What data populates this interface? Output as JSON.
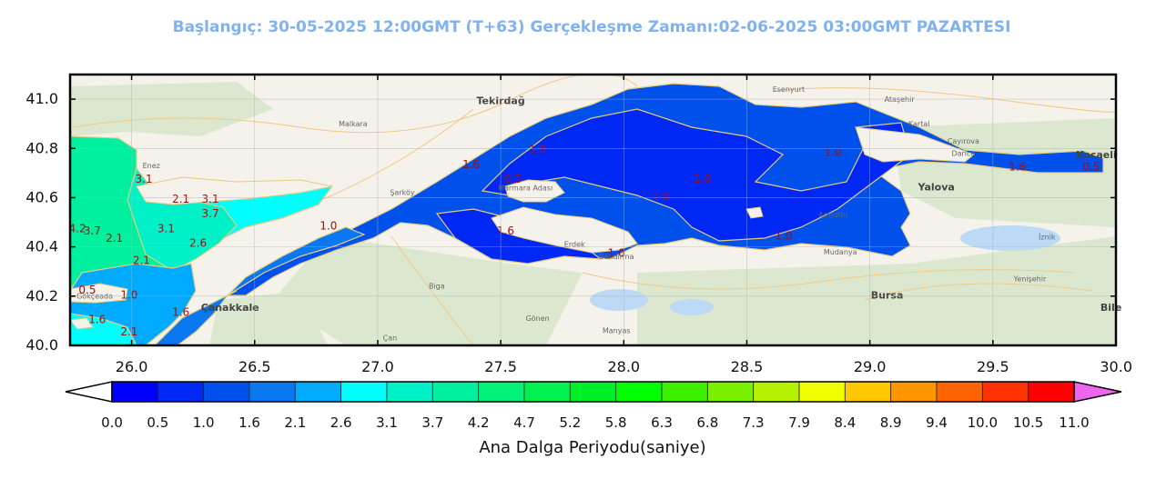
{
  "chart_data": {
    "type": "heatmap",
    "title": "Başlangıç: 30-05-2025 12:00GMT (T+63)  Gerçekleşme Zamanı:02-06-2025 03:00GMT PAZARTESI",
    "xlabel": "",
    "ylabel": "",
    "xlim": [
      25.75,
      30.0
    ],
    "ylim": [
      40.0,
      41.1
    ],
    "x_ticks": [
      "26.0",
      "26.5",
      "27.0",
      "27.5",
      "28.0",
      "28.5",
      "29.0",
      "29.5",
      "30.0"
    ],
    "y_ticks": [
      "40.0",
      "40.2",
      "40.4",
      "40.6",
      "40.8",
      "41.0"
    ],
    "grid": true,
    "colorbar": {
      "label": "Ana Dalga Periyodu(saniye)",
      "ticks": [
        "0.0",
        "0.5",
        "1.0",
        "1.6",
        "2.1",
        "2.6",
        "3.1",
        "3.7",
        "4.2",
        "4.7",
        "5.2",
        "5.8",
        "6.3",
        "6.8",
        "7.3",
        "7.9",
        "8.4",
        "8.9",
        "9.4",
        "10.0",
        "10.5",
        "11.0"
      ],
      "colors": [
        "#0000ff",
        "#0028f5",
        "#0050eb",
        "#0a78f0",
        "#00aaff",
        "#00ffff",
        "#00f0c8",
        "#00f0a0",
        "#00f078",
        "#00f050",
        "#00f028",
        "#00ff00",
        "#3cf000",
        "#78f000",
        "#b4f000",
        "#f0ff00",
        "#ffc800",
        "#ff9600",
        "#ff6400",
        "#ff3200",
        "#ff0000"
      ],
      "under_color": "#ffffff",
      "over_color": "#ee66ee"
    },
    "contour_labels": [
      {
        "text": "1.0",
        "lon": 27.65,
        "lat": 40.78
      },
      {
        "text": "0.5",
        "lon": 27.55,
        "lat": 40.66
      },
      {
        "text": "1.6",
        "lon": 27.38,
        "lat": 40.72
      },
      {
        "text": "1.6",
        "lon": 27.52,
        "lat": 40.45
      },
      {
        "text": "1.0",
        "lon": 28.15,
        "lat": 40.59
      },
      {
        "text": "1.0",
        "lon": 28.32,
        "lat": 40.66
      },
      {
        "text": "1.0",
        "lon": 28.85,
        "lat": 40.77
      },
      {
        "text": "1.0",
        "lon": 28.65,
        "lat": 40.43
      },
      {
        "text": "1.0",
        "lon": 27.97,
        "lat": 40.36
      },
      {
        "text": "1.0",
        "lon": 26.8,
        "lat": 40.47
      },
      {
        "text": "1.6",
        "lon": 29.6,
        "lat": 40.71
      },
      {
        "text": "0.5",
        "lon": 29.9,
        "lat": 40.71
      },
      {
        "text": "3.1",
        "lon": 26.05,
        "lat": 40.66
      },
      {
        "text": "2.1",
        "lon": 26.2,
        "lat": 40.58
      },
      {
        "text": "3.1",
        "lon": 26.32,
        "lat": 40.58
      },
      {
        "text": "3.7",
        "lon": 26.32,
        "lat": 40.52
      },
      {
        "text": "3.1",
        "lon": 26.14,
        "lat": 40.46
      },
      {
        "text": "2.6",
        "lon": 26.27,
        "lat": 40.4
      },
      {
        "text": "2.1",
        "lon": 26.04,
        "lat": 40.33
      },
      {
        "text": "2.1",
        "lon": 25.93,
        "lat": 40.42
      },
      {
        "text": "3.7",
        "lon": 25.84,
        "lat": 40.45
      },
      {
        "text": "4.2",
        "lon": 25.78,
        "lat": 40.46
      },
      {
        "text": "0.5",
        "lon": 25.82,
        "lat": 40.21
      },
      {
        "text": "1.0",
        "lon": 25.99,
        "lat": 40.19
      },
      {
        "text": "1.6",
        "lon": 25.86,
        "lat": 40.09
      },
      {
        "text": "1.6",
        "lon": 26.2,
        "lat": 40.12
      },
      {
        "text": "2.1",
        "lon": 25.99,
        "lat": 40.04
      }
    ]
  },
  "places": [
    {
      "name": "Tekirdağ",
      "lon": 27.5,
      "lat": 40.98,
      "bold": true
    },
    {
      "name": "Çanakkale",
      "lon": 26.4,
      "lat": 40.14,
      "bold": true
    },
    {
      "name": "Bursa",
      "lon": 29.07,
      "lat": 40.19,
      "bold": true
    },
    {
      "name": "Yalova",
      "lon": 29.27,
      "lat": 40.63,
      "bold": true
    },
    {
      "name": "Kocaeli",
      "lon": 29.92,
      "lat": 40.76,
      "bold": true
    },
    {
      "name": "Bile",
      "lon": 29.98,
      "lat": 40.14,
      "bold": true
    },
    {
      "name": "Esenyurt",
      "lon": 28.67,
      "lat": 41.03,
      "bold": false
    },
    {
      "name": "Malkara",
      "lon": 26.9,
      "lat": 40.89,
      "bold": false
    },
    {
      "name": "Enez",
      "lon": 26.08,
      "lat": 40.72,
      "bold": false
    },
    {
      "name": "Şarköy",
      "lon": 27.1,
      "lat": 40.61,
      "bold": false
    },
    {
      "name": "Marmara Adası",
      "lon": 27.6,
      "lat": 40.63,
      "bold": false
    },
    {
      "name": "Erdek",
      "lon": 27.8,
      "lat": 40.4,
      "bold": false
    },
    {
      "name": "Bandırma",
      "lon": 27.97,
      "lat": 40.35,
      "bold": false
    },
    {
      "name": "Biga",
      "lon": 27.24,
      "lat": 40.23,
      "bold": false
    },
    {
      "name": "Gönen",
      "lon": 27.65,
      "lat": 40.1,
      "bold": false
    },
    {
      "name": "Manyas",
      "lon": 27.97,
      "lat": 40.05,
      "bold": false
    },
    {
      "name": "Çan",
      "lon": 27.05,
      "lat": 40.02,
      "bold": false
    },
    {
      "name": "Gökçeada",
      "lon": 25.85,
      "lat": 40.19,
      "bold": false
    },
    {
      "name": "Armutlu",
      "lon": 28.85,
      "lat": 40.52,
      "bold": false
    },
    {
      "name": "Mudanya",
      "lon": 28.88,
      "lat": 40.37,
      "bold": false
    },
    {
      "name": "Çayırova",
      "lon": 29.38,
      "lat": 40.82,
      "bold": false
    },
    {
      "name": "Darıca",
      "lon": 29.38,
      "lat": 40.77,
      "bold": false
    },
    {
      "name": "Kartal",
      "lon": 29.2,
      "lat": 40.89,
      "bold": false
    },
    {
      "name": "Ataşehir",
      "lon": 29.12,
      "lat": 40.99,
      "bold": false
    },
    {
      "name": "İznik",
      "lon": 29.72,
      "lat": 40.43,
      "bold": false
    },
    {
      "name": "Yenişehir",
      "lon": 29.65,
      "lat": 40.26,
      "bold": false
    }
  ]
}
